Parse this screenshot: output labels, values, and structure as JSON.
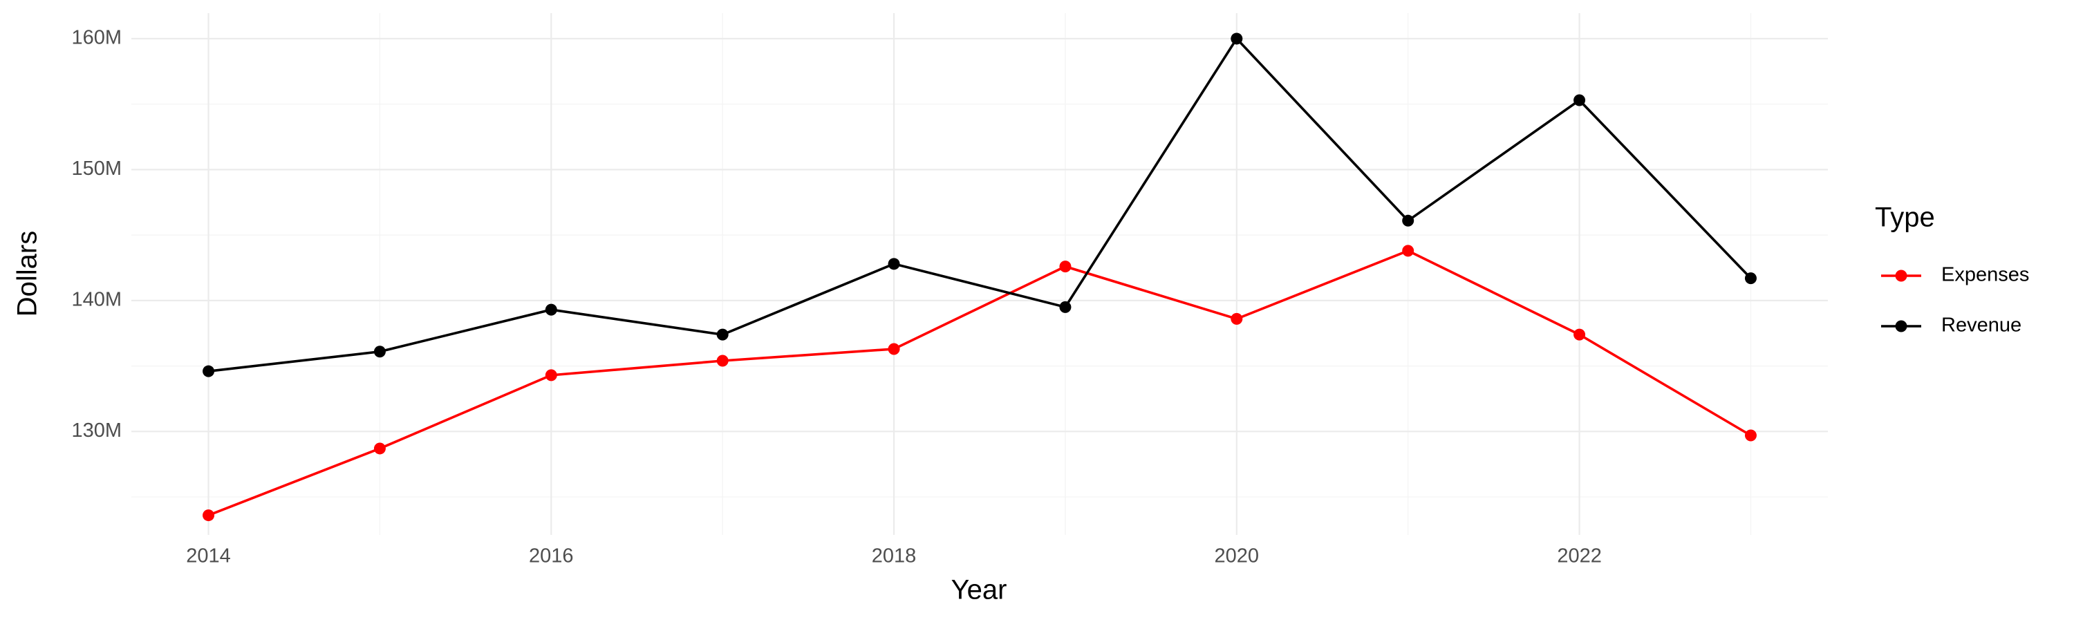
{
  "chart_data": {
    "type": "line",
    "x_label": "Year",
    "y_label": "Dollars",
    "legend_title": "Type",
    "legend_position": "right",
    "x": [
      2014,
      2015,
      2016,
      2017,
      2018,
      2019,
      2020,
      2021,
      2022,
      2023
    ],
    "series": [
      {
        "name": "Expenses",
        "color": "#ff0000",
        "values": [
          123600000,
          128700000,
          134300000,
          135400000,
          136300000,
          142600000,
          138600000,
          143800000,
          137400000,
          129700000
        ]
      },
      {
        "name": "Revenue",
        "color": "#000000",
        "values": [
          134600000,
          136100000,
          139300000,
          137400000,
          142800000,
          139500000,
          160000000,
          146100000,
          155300000,
          141700000
        ]
      }
    ],
    "xlim": [
      2013.55,
      2023.45
    ],
    "xticks": [
      2014,
      2016,
      2018,
      2020,
      2022
    ],
    "x_minor_ticks": [
      2015,
      2017,
      2019,
      2021,
      2023
    ],
    "ylim": [
      122100000,
      161950000
    ],
    "yticks": [
      {
        "value": 130000000,
        "label": "130M"
      },
      {
        "value": 140000000,
        "label": "140M"
      },
      {
        "value": 150000000,
        "label": "150M"
      },
      {
        "value": 160000000,
        "label": "160M"
      }
    ],
    "y_minor_ticks": [
      125000000,
      135000000,
      145000000,
      155000000
    ],
    "grid": true
  }
}
